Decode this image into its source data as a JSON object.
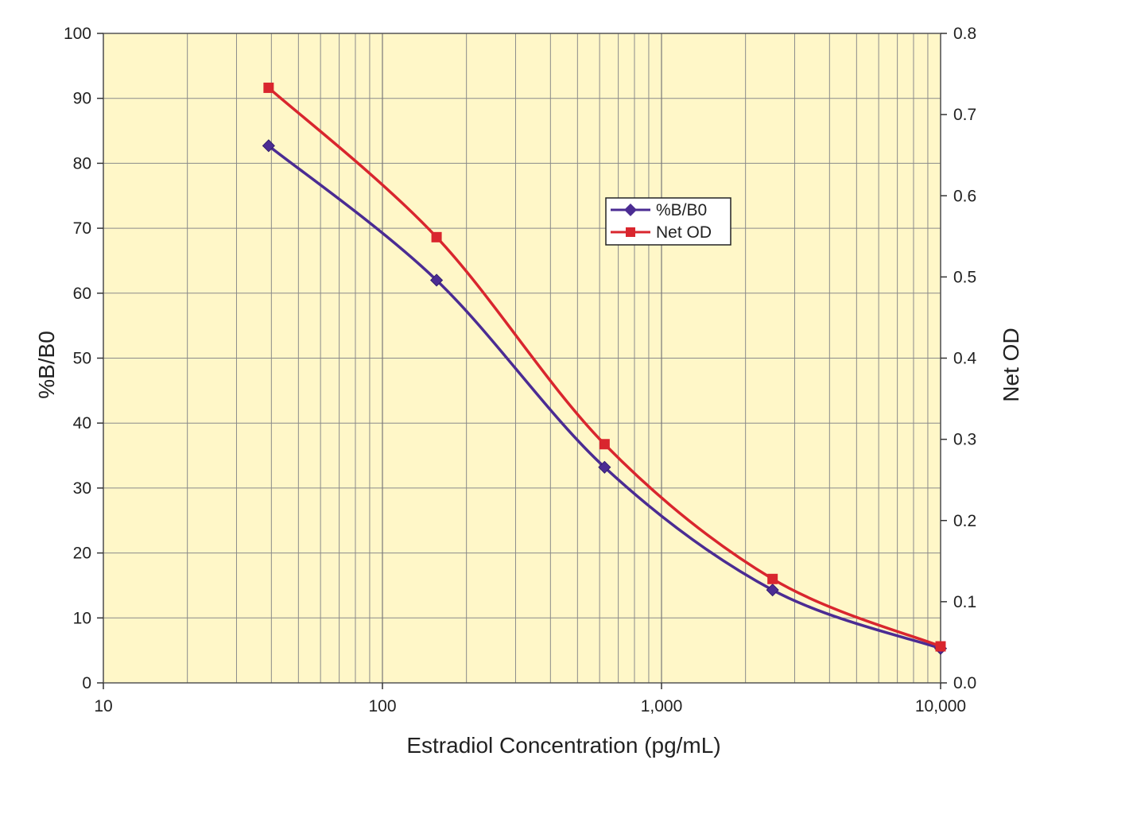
{
  "chart_data": {
    "type": "line",
    "xlabel": "Estradiol Concentration (pg/mL)",
    "ylabel": "%B/B0",
    "y2label": "Net OD",
    "x_scale": "log",
    "xlim": [
      10,
      10000
    ],
    "ylim": [
      0,
      100
    ],
    "y2lim": [
      0,
      0.8
    ],
    "x_ticks": [
      10,
      100,
      1000,
      10000
    ],
    "x_tick_labels": [
      "10",
      "100",
      "1,000",
      "10,000"
    ],
    "y_ticks": [
      0,
      10,
      20,
      30,
      40,
      50,
      60,
      70,
      80,
      90,
      100
    ],
    "y_tick_labels": [
      "0",
      "10",
      "20",
      "30",
      "40",
      "50",
      "60",
      "70",
      "80",
      "90",
      "100"
    ],
    "y2_ticks": [
      0,
      0.1,
      0.2,
      0.3,
      0.4,
      0.5,
      0.6,
      0.7,
      0.8
    ],
    "y2_tick_labels": [
      "0.0",
      "0.1",
      "0.2",
      "0.3",
      "0.4",
      "0.5",
      "0.6",
      "0.7",
      "0.8"
    ],
    "grid": true,
    "legend_position": "upper-center-right",
    "plot_background": "#fff7c8",
    "series": [
      {
        "name": "%B/B0",
        "axis": "left",
        "marker": "diamond",
        "color": "#4b2c93",
        "x": [
          39.1,
          156.3,
          625,
          2500,
          10000
        ],
        "values": [
          82.7,
          62.0,
          33.2,
          14.3,
          5.3
        ]
      },
      {
        "name": "Net OD",
        "axis": "right",
        "marker": "square",
        "color": "#d9262e",
        "x": [
          39.1,
          156.3,
          625,
          2500,
          10000
        ],
        "values": [
          0.733,
          0.549,
          0.294,
          0.128,
          0.045
        ]
      }
    ]
  }
}
